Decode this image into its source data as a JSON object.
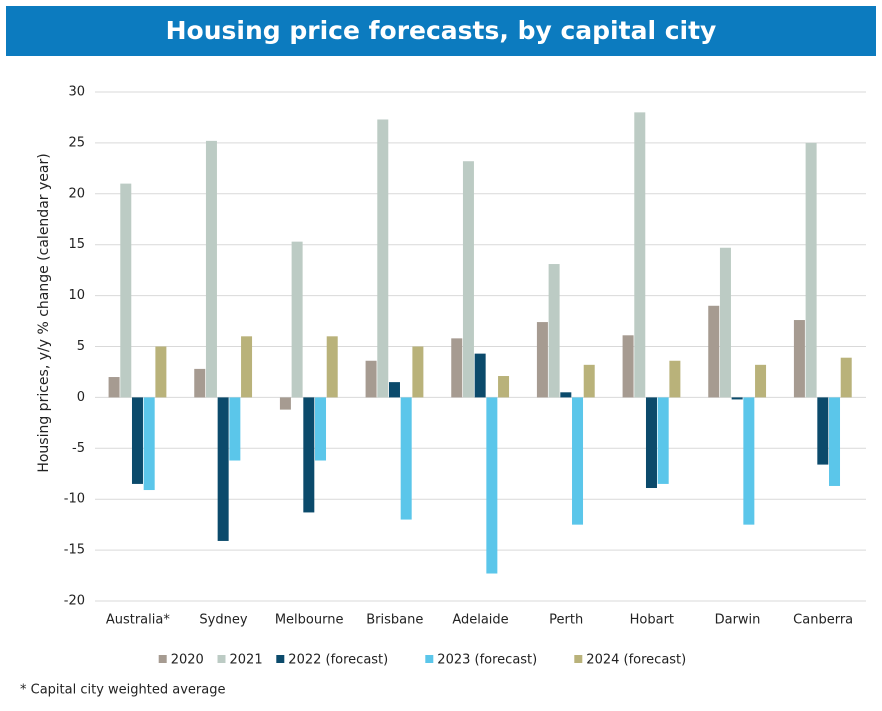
{
  "chart_data": {
    "type": "bar",
    "title": "Housing price forecasts, by capital city",
    "y_label": "Housing prices, y/y % change (calendar year)",
    "footnote": "* Capital city weighted average",
    "categories": [
      "Australia*",
      "Sydney",
      "Melbourne",
      "Brisbane",
      "Adelaide",
      "Perth",
      "Hobart",
      "Darwin",
      "Canberra"
    ],
    "series": [
      {
        "name": "2020",
        "color": "#a69b91",
        "values": [
          2.0,
          2.8,
          -1.2,
          3.6,
          5.8,
          7.4,
          6.1,
          9.0,
          7.6
        ]
      },
      {
        "name": "2021",
        "color": "#bccbc4",
        "values": [
          21.0,
          25.2,
          15.3,
          27.3,
          23.2,
          13.1,
          28.0,
          14.7,
          25.0
        ]
      },
      {
        "name": "2022 (forecast)",
        "color": "#0b4a6b",
        "values": [
          -8.5,
          -14.1,
          -11.3,
          1.5,
          4.3,
          0.5,
          -8.9,
          -0.2,
          -6.6
        ]
      },
      {
        "name": "2023 (forecast)",
        "color": "#5bc6ea",
        "values": [
          -9.1,
          -6.2,
          -6.2,
          -12.0,
          -17.3,
          -12.5,
          -8.5,
          -12.5,
          -8.7
        ]
      },
      {
        "name": "2024 (forecast)",
        "color": "#b9b27a",
        "values": [
          5.0,
          6.0,
          6.0,
          5.0,
          2.1,
          3.2,
          3.6,
          3.2,
          3.9
        ]
      }
    ],
    "ylim": [
      -20,
      30
    ],
    "yticks": [
      -20,
      -15,
      -10,
      -5,
      0,
      5,
      10,
      15,
      20,
      25,
      30
    ],
    "grid": true,
    "legend": "bottom",
    "title_background": "#0c7bbf"
  }
}
